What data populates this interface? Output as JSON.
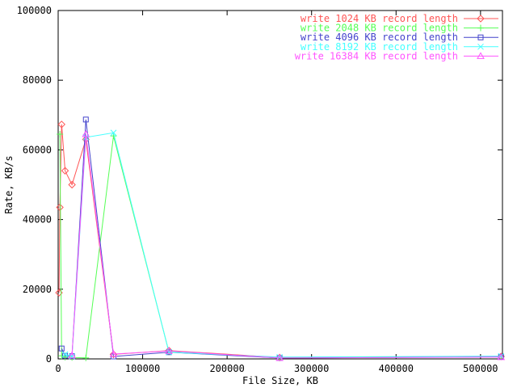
{
  "chart_data": {
    "type": "line",
    "title": "",
    "xlabel": "File Size, KB",
    "ylabel": "Rate, KB/s",
    "xlim": [
      0,
      525000
    ],
    "ylim": [
      0,
      100000
    ],
    "grid": false,
    "legend_position": "top-right",
    "x_ticks": [
      {
        "value": 0,
        "label": "0"
      },
      {
        "value": 100000,
        "label": "100000"
      },
      {
        "value": 200000,
        "label": "200000"
      },
      {
        "value": 300000,
        "label": "300000"
      },
      {
        "value": 400000,
        "label": "400000"
      },
      {
        "value": 500000,
        "label": "500000"
      }
    ],
    "y_ticks": [
      {
        "value": 0,
        "label": "0"
      },
      {
        "value": 20000,
        "label": "20000"
      },
      {
        "value": 40000,
        "label": "40000"
      },
      {
        "value": 60000,
        "label": "60000"
      },
      {
        "value": 80000,
        "label": "80000"
      },
      {
        "value": 100000,
        "label": "100000"
      }
    ],
    "series": [
      {
        "name": "write 1024 KB record length",
        "color": "#ff5555",
        "marker": "diamond",
        "x": [
          1024,
          2048,
          4096,
          8192,
          16384,
          32768,
          65536,
          131072,
          262144,
          524288
        ],
        "values": [
          19000,
          43500,
          67300,
          54000,
          50000,
          63000,
          1300,
          2400,
          400,
          700
        ]
      },
      {
        "name": "write 2048 KB record length",
        "color": "#55ff55",
        "marker": "plus",
        "x": [
          2048,
          4096,
          8192,
          16384,
          32768,
          65536,
          131072,
          262144,
          524288
        ],
        "values": [
          64500,
          900,
          500,
          400,
          300,
          64000,
          2000,
          300,
          600
        ]
      },
      {
        "name": "write 4096 KB record length",
        "color": "#4444cc",
        "marker": "square",
        "x": [
          4096,
          8192,
          16384,
          32768,
          65536,
          131072,
          262144,
          524288
        ],
        "values": [
          3000,
          900,
          800,
          68700,
          700,
          1900,
          250,
          600
        ]
      },
      {
        "name": "write 8192 KB record length",
        "color": "#44ffff",
        "marker": "cross",
        "x": [
          8192,
          16384,
          32768,
          65536,
          131072,
          262144,
          524288
        ],
        "values": [
          1300,
          700,
          63600,
          64900,
          1900,
          500,
          800
        ]
      },
      {
        "name": "write 16384 KB record length",
        "color": "#ff55ff",
        "marker": "triangle",
        "x": [
          16384,
          32768,
          65536,
          131072,
          262144,
          524288
        ],
        "values": [
          1000,
          64500,
          1400,
          2300,
          250,
          500
        ]
      }
    ]
  },
  "layout_colors": {
    "background": "#ffffff",
    "axis": "#000000"
  }
}
